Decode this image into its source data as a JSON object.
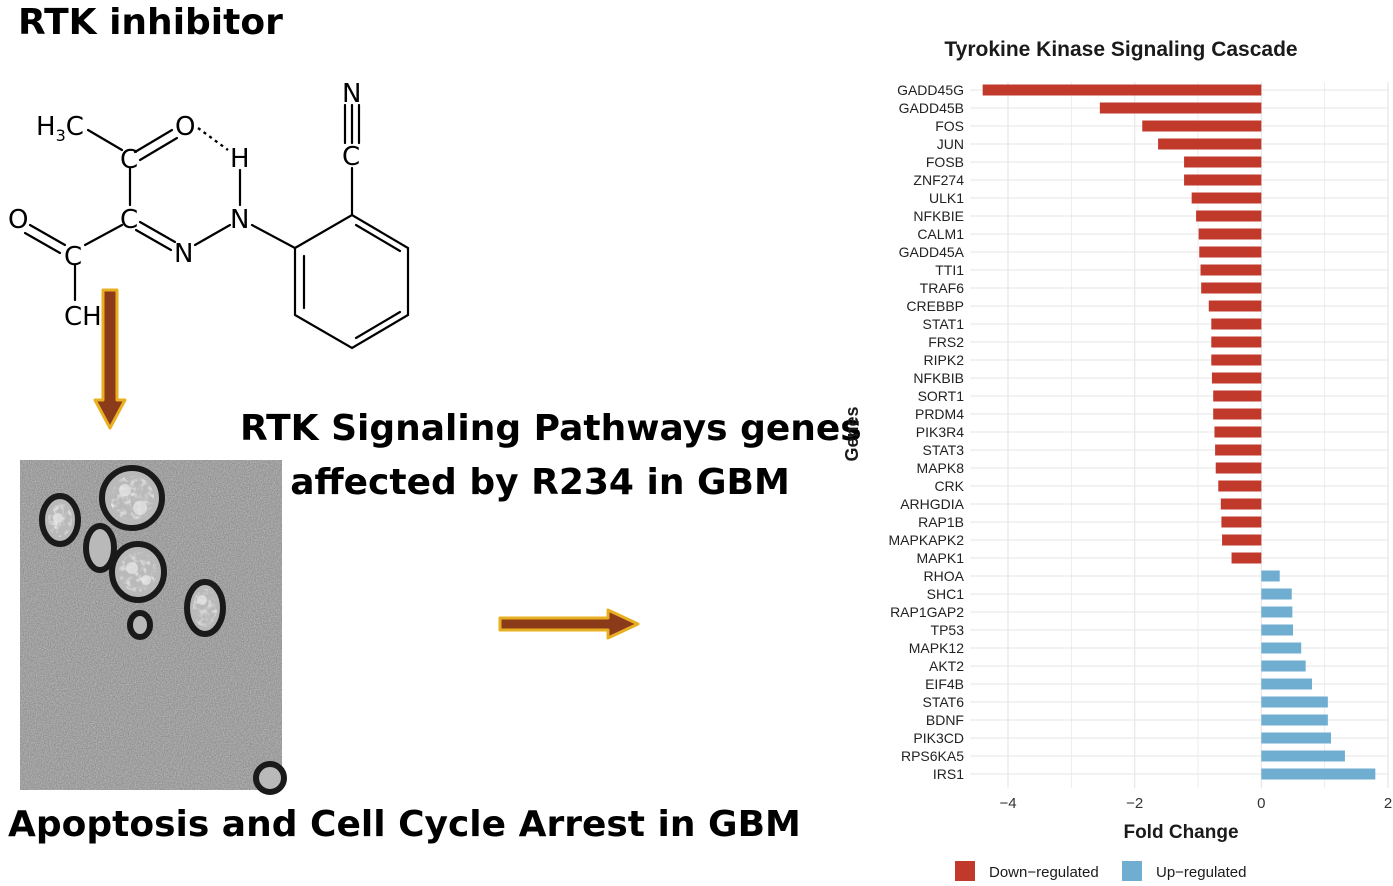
{
  "rtk_title": "RTK inhibitor",
  "molecule": {
    "labels": {
      "methyl": "H",
      "methyl_sub": "3",
      "methyl_c": "C",
      "o_top": "O",
      "h_bond": "H",
      "c_top": "C",
      "c_mid": "C",
      "o_left": "O",
      "c_left": "C",
      "ch": "CH",
      "n_left": "N",
      "n_right": "N",
      "n_nitrile": "N",
      "c_nitrile": "C"
    }
  },
  "pathway_caption_line1": "RTK Signaling Pathways genes",
  "pathway_caption_line2": "affected by R234 in GBM",
  "apoptosis_caption": "Apoptosis and Cell Cycle Arrest in GBM",
  "colors": {
    "down": "#C0392B",
    "up": "#6FAED1",
    "arrow_fill": "#8B3A1A",
    "arrow_outline": "#E8B020",
    "grid": "#E6E6E6"
  },
  "chart_data": {
    "type": "bar",
    "orientation": "horizontal",
    "title": "Tyrokine Kinase Signaling Cascade",
    "xlabel": "Fold Change",
    "ylabel": "Genes",
    "xlim": [
      -4.6,
      2.0
    ],
    "xticks": [
      -4,
      -2,
      0,
      2
    ],
    "xtick_labels": [
      "−4",
      "−2",
      "0",
      "2"
    ],
    "grid": true,
    "legend_position": "bottom",
    "series": [
      {
        "name": "Down−regulated",
        "color": "#C0392B"
      },
      {
        "name": "Up−regulated",
        "color": "#6FAED1"
      }
    ],
    "categories": [
      "GADD45G",
      "GADD45B",
      "FOS",
      "JUN",
      "FOSB",
      "ZNF274",
      "ULK1",
      "NFKBIE",
      "CALM1",
      "GADD45A",
      "TTI1",
      "TRAF6",
      "CREBBP",
      "STAT1",
      "FRS2",
      "RIPK2",
      "NFKBIB",
      "SORT1",
      "PRDM4",
      "PIK3R4",
      "STAT3",
      "MAPK8",
      "CRK",
      "ARHGDIA",
      "RAP1B",
      "MAPKAPK2",
      "MAPK1",
      "RHOA",
      "SHC1",
      "RAP1GAP2",
      "TP53",
      "MAPK12",
      "AKT2",
      "EIF4B",
      "STAT6",
      "BDNF",
      "PIK3CD",
      "RPS6KA5",
      "IRS1"
    ],
    "values": [
      -4.4,
      -2.55,
      -1.88,
      -1.63,
      -1.22,
      -1.22,
      -1.1,
      -1.03,
      -0.99,
      -0.98,
      -0.96,
      -0.95,
      -0.83,
      -0.79,
      -0.79,
      -0.79,
      -0.78,
      -0.76,
      -0.76,
      -0.74,
      -0.73,
      -0.72,
      -0.68,
      -0.64,
      -0.63,
      -0.62,
      -0.47,
      0.29,
      0.48,
      0.49,
      0.5,
      0.63,
      0.7,
      0.8,
      1.05,
      1.05,
      1.1,
      1.32,
      1.8
    ]
  }
}
